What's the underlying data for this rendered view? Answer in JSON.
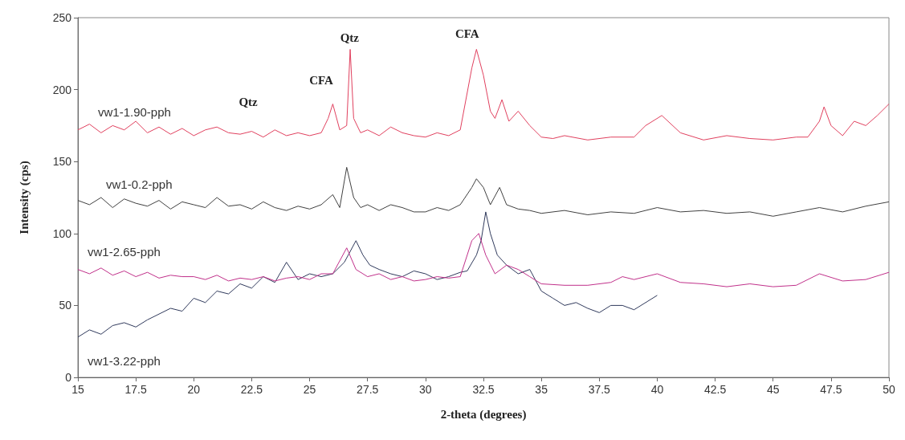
{
  "chart_data": {
    "type": "line",
    "xlabel": "2-theta (degrees)",
    "ylabel": "Intensity (cps)",
    "xlim": [
      15,
      50
    ],
    "ylim": [
      0,
      250
    ],
    "xticks": [
      15,
      17.5,
      20,
      22.5,
      25,
      27.5,
      30,
      32.5,
      35,
      37.5,
      40,
      42.5,
      45,
      47.5,
      50
    ],
    "yticks": [
      0,
      50,
      100,
      150,
      200,
      250
    ],
    "grid": false,
    "legend": false,
    "line_style": "solid",
    "annotations": [
      "Qtz",
      "CFA",
      "Qtz",
      "CFA"
    ],
    "series": [
      {
        "name": "vw1-1.90-pph",
        "color": "#e0405e",
        "x": [
          15,
          15.5,
          16,
          16.5,
          17,
          17.5,
          18,
          18.5,
          19,
          19.5,
          20,
          20.5,
          21,
          21.5,
          22,
          22.5,
          23,
          23.5,
          24,
          24.5,
          25,
          25.5,
          25.8,
          26,
          26.3,
          26.6,
          26.75,
          26.9,
          27.2,
          27.5,
          28,
          28.5,
          29,
          29.5,
          30,
          30.5,
          31,
          31.5,
          32,
          32.2,
          32.5,
          32.8,
          33,
          33.3,
          33.6,
          34,
          34.5,
          35,
          35.5,
          36,
          37,
          38,
          39,
          39.5,
          40.2,
          41,
          42,
          43,
          44,
          45,
          46,
          46.5,
          47,
          47.2,
          47.5,
          48,
          48.5,
          49,
          49.5,
          50
        ],
        "values": [
          172,
          176,
          170,
          175,
          172,
          178,
          170,
          174,
          169,
          173,
          168,
          172,
          174,
          170,
          169,
          171,
          167,
          172,
          168,
          170,
          168,
          170,
          180,
          190,
          172,
          175,
          228,
          180,
          170,
          172,
          168,
          174,
          170,
          168,
          167,
          170,
          168,
          172,
          215,
          228,
          210,
          185,
          180,
          193,
          178,
          185,
          175,
          167,
          166,
          168,
          165,
          167,
          167,
          175,
          182,
          170,
          165,
          168,
          166,
          165,
          167,
          167,
          178,
          188,
          175,
          168,
          178,
          175,
          182,
          190
        ]
      },
      {
        "name": "vw1-0.2-pph",
        "color": "#404040",
        "x": [
          15,
          15.5,
          16,
          16.5,
          17,
          17.5,
          18,
          18.5,
          19,
          19.5,
          20,
          20.5,
          21,
          21.5,
          22,
          22.5,
          23,
          23.5,
          24,
          24.5,
          25,
          25.5,
          26,
          26.3,
          26.6,
          26.9,
          27.2,
          27.5,
          28,
          28.5,
          29,
          29.5,
          30,
          30.5,
          31,
          31.5,
          32,
          32.2,
          32.5,
          32.8,
          33.2,
          33.5,
          34,
          34.5,
          35,
          36,
          37,
          38,
          39,
          40,
          41,
          42,
          43,
          44,
          45,
          46,
          47,
          48,
          49,
          50
        ],
        "values": [
          123,
          120,
          125,
          118,
          124,
          121,
          119,
          123,
          117,
          122,
          120,
          118,
          125,
          119,
          120,
          117,
          122,
          118,
          116,
          119,
          117,
          120,
          127,
          118,
          146,
          125,
          118,
          120,
          116,
          120,
          118,
          115,
          115,
          118,
          116,
          120,
          132,
          138,
          132,
          120,
          132,
          120,
          117,
          116,
          114,
          116,
          113,
          115,
          114,
          118,
          115,
          116,
          114,
          115,
          112,
          115,
          118,
          115,
          119,
          122
        ]
      },
      {
        "name": "vw1-2.65-pph",
        "color": "#c0308a",
        "x": [
          15,
          15.5,
          16,
          16.5,
          17,
          17.5,
          18,
          18.5,
          19,
          19.5,
          20,
          20.5,
          21,
          21.5,
          22,
          22.5,
          23,
          23.5,
          24,
          24.5,
          25,
          25.5,
          26,
          26.6,
          27,
          27.5,
          28,
          28.5,
          29,
          29.5,
          30,
          30.5,
          31,
          31.5,
          32,
          32.3,
          32.6,
          33,
          33.5,
          34,
          34.5,
          35,
          36,
          37,
          38,
          38.5,
          39,
          40,
          41,
          42,
          43,
          44,
          45,
          46,
          47,
          48,
          49,
          50
        ],
        "values": [
          75,
          72,
          76,
          71,
          74,
          70,
          73,
          69,
          71,
          70,
          70,
          68,
          71,
          67,
          69,
          68,
          70,
          67,
          69,
          70,
          68,
          72,
          72,
          90,
          75,
          70,
          72,
          68,
          70,
          67,
          68,
          70,
          69,
          70,
          95,
          100,
          85,
          72,
          78,
          75,
          70,
          65,
          64,
          64,
          66,
          70,
          68,
          72,
          66,
          65,
          63,
          65,
          63,
          64,
          72,
          67,
          68,
          73
        ]
      },
      {
        "name": "vw1-3.22-pph",
        "color": "#303a5c",
        "x": [
          15,
          15.5,
          16,
          16.5,
          17,
          17.5,
          18,
          18.5,
          19,
          19.5,
          20,
          20.5,
          21,
          21.5,
          22,
          22.5,
          23,
          23.5,
          24,
          24.5,
          25,
          25.5,
          26,
          26.5,
          27,
          27.3,
          27.6,
          28,
          28.5,
          29,
          29.5,
          30,
          30.5,
          31,
          31.5,
          31.8,
          32.2,
          32.4,
          32.6,
          32.8,
          33.1,
          33.5,
          34,
          34.5,
          35,
          35.5,
          36,
          36.5,
          37,
          37.5,
          38,
          38.5,
          39,
          39.5,
          40
        ],
        "values": [
          28,
          33,
          30,
          36,
          38,
          35,
          40,
          44,
          48,
          46,
          55,
          52,
          60,
          58,
          65,
          62,
          70,
          66,
          80,
          68,
          72,
          70,
          72,
          80,
          95,
          85,
          78,
          75,
          72,
          70,
          74,
          72,
          68,
          70,
          73,
          74,
          85,
          95,
          115,
          100,
          85,
          78,
          72,
          75,
          60,
          55,
          50,
          52,
          48,
          45,
          50,
          50,
          47,
          52,
          57
        ]
      }
    ]
  }
}
